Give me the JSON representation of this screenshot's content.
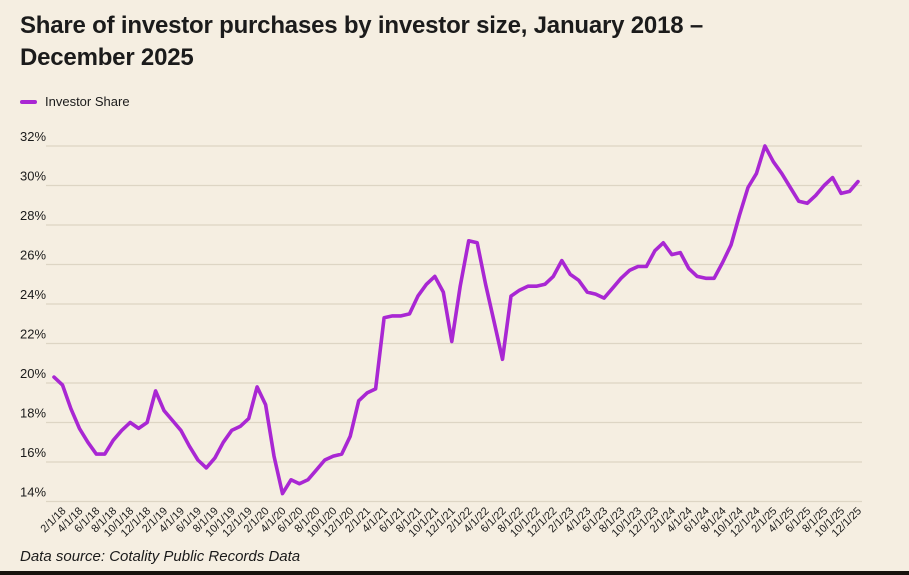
{
  "header": {
    "title": "Share of investor purchases by investor size, January 2018 – December 2025"
  },
  "legend": {
    "label": "Investor Share"
  },
  "footer": {
    "source": "Data source: Cotality Public Records Data"
  },
  "colors": {
    "background": "#f5eee1",
    "line": "#a927d3",
    "grid": "#ddd5c4",
    "text": "#1b1b1b"
  },
  "chart_data": {
    "type": "line",
    "title": "Share of investor purchases by investor size, January 2018 – December 2025",
    "xlabel": "",
    "ylabel": "",
    "ylim": [
      14,
      32
    ],
    "grid": "horizontal",
    "legend_position": "top-left",
    "y_tick_labels": [
      "32%",
      "30%",
      "28%",
      "26%",
      "24%",
      "22%",
      "20%",
      "18%",
      "16%",
      "14%"
    ],
    "x_tick_labels": [
      "2/1/18",
      "4/1/18",
      "6/1/18",
      "8/1/18",
      "10/1/18",
      "12/1/18",
      "2/1/19",
      "4/1/19",
      "6/1/19",
      "8/1/19",
      "10/1/19",
      "12/1/19",
      "2/1/20",
      "4/1/20",
      "6/1/20",
      "8/1/20",
      "10/1/20",
      "12/1/20",
      "2/1/21",
      "4/1/21",
      "6/1/21",
      "8/1/21",
      "10/1/21",
      "12/1/21",
      "2/1/22",
      "4/1/22",
      "6/1/22",
      "8/1/22",
      "10/1/22",
      "12/1/22",
      "2/1/23",
      "4/1/23",
      "6/1/23",
      "8/1/23",
      "10/1/23",
      "12/1/23",
      "2/1/24",
      "4/1/24",
      "6/1/24",
      "8/1/24",
      "10/1/24",
      "12/1/24",
      "2/1/25",
      "4/1/25",
      "6/1/25",
      "8/1/25",
      "10/1/25",
      "12/1/25"
    ],
    "x": [
      "1/1/18",
      "2/1/18",
      "3/1/18",
      "4/1/18",
      "5/1/18",
      "6/1/18",
      "7/1/18",
      "8/1/18",
      "9/1/18",
      "10/1/18",
      "11/1/18",
      "12/1/18",
      "1/1/19",
      "2/1/19",
      "3/1/19",
      "4/1/19",
      "5/1/19",
      "6/1/19",
      "7/1/19",
      "8/1/19",
      "9/1/19",
      "10/1/19",
      "11/1/19",
      "12/1/19",
      "1/1/20",
      "2/1/20",
      "3/1/20",
      "4/1/20",
      "5/1/20",
      "6/1/20",
      "7/1/20",
      "8/1/20",
      "9/1/20",
      "10/1/20",
      "11/1/20",
      "12/1/20",
      "1/1/21",
      "2/1/21",
      "3/1/21",
      "4/1/21",
      "5/1/21",
      "6/1/21",
      "7/1/21",
      "8/1/21",
      "9/1/21",
      "10/1/21",
      "11/1/21",
      "12/1/21",
      "1/1/22",
      "2/1/22",
      "3/1/22",
      "4/1/22",
      "5/1/22",
      "6/1/22",
      "7/1/22",
      "8/1/22",
      "9/1/22",
      "10/1/22",
      "11/1/22",
      "12/1/22",
      "1/1/23",
      "2/1/23",
      "3/1/23",
      "4/1/23",
      "5/1/23",
      "6/1/23",
      "7/1/23",
      "8/1/23",
      "9/1/23",
      "10/1/23",
      "11/1/23",
      "12/1/23",
      "1/1/24",
      "2/1/24",
      "3/1/24",
      "4/1/24",
      "5/1/24",
      "6/1/24",
      "7/1/24",
      "8/1/24",
      "9/1/24",
      "10/1/24",
      "11/1/24",
      "12/1/24",
      "1/1/25",
      "2/1/25",
      "3/1/25",
      "4/1/25",
      "5/1/25",
      "6/1/25",
      "7/1/25",
      "8/1/25",
      "9/1/25",
      "10/1/25",
      "11/1/25",
      "12/1/25"
    ],
    "series": [
      {
        "name": "Investor Share",
        "color": "#a927d3",
        "values": [
          20.3,
          19.9,
          18.7,
          17.7,
          17.0,
          16.4,
          16.4,
          17.1,
          17.6,
          18.0,
          17.7,
          18.0,
          19.6,
          18.6,
          18.1,
          17.6,
          16.8,
          16.1,
          15.7,
          16.2,
          17.0,
          17.6,
          17.8,
          18.2,
          19.8,
          18.9,
          16.3,
          14.4,
          15.1,
          14.9,
          15.1,
          15.6,
          16.1,
          16.3,
          16.4,
          17.3,
          19.1,
          19.5,
          19.7,
          23.3,
          23.4,
          23.4,
          23.5,
          24.4,
          25.0,
          25.4,
          24.6,
          22.1,
          24.9,
          27.2,
          27.1,
          25.0,
          23.1,
          21.2,
          24.4,
          24.7,
          24.9,
          24.9,
          25.0,
          25.4,
          26.2,
          25.5,
          25.2,
          24.6,
          24.5,
          24.3,
          24.8,
          25.3,
          25.7,
          25.9,
          25.9,
          26.7,
          27.1,
          26.5,
          26.6,
          25.8,
          25.4,
          25.3,
          25.3,
          26.1,
          27.0,
          28.5,
          29.9,
          30.6,
          32.0,
          31.2,
          30.6,
          29.9,
          29.2,
          29.1,
          29.5,
          30.0,
          30.4,
          29.6,
          29.7,
          30.2
        ]
      }
    ]
  }
}
